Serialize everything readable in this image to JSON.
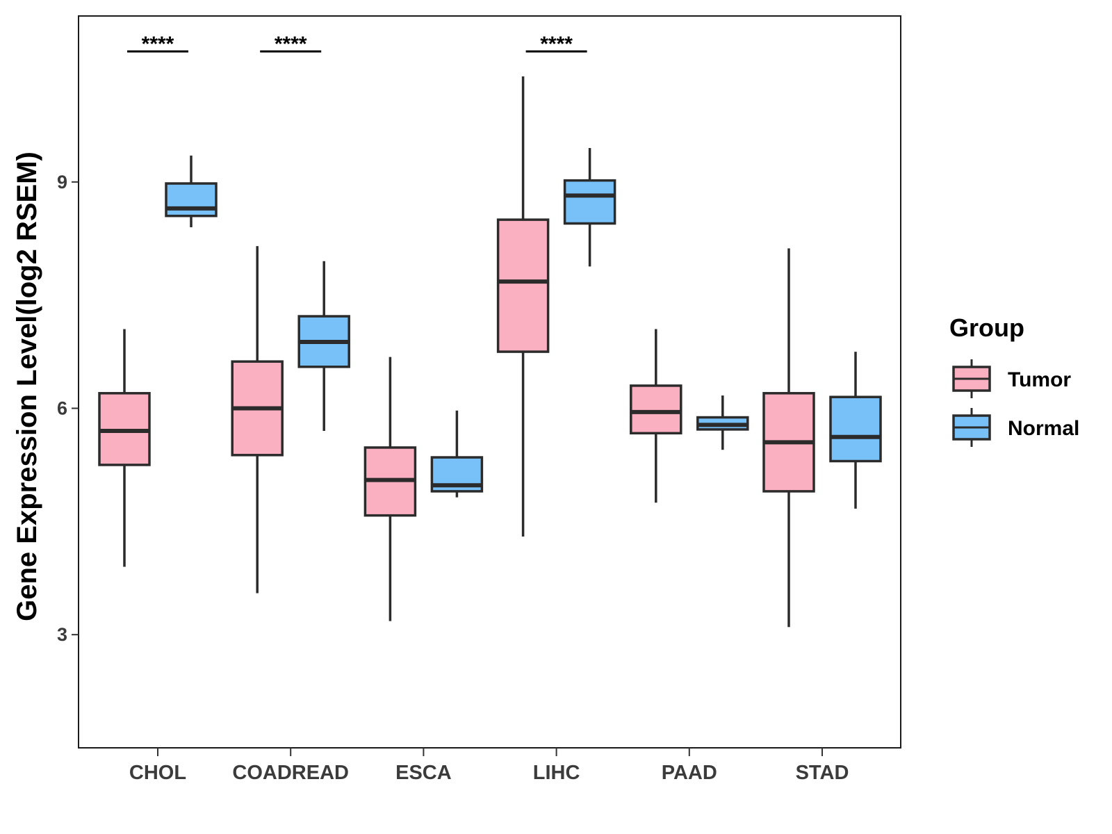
{
  "chart_data": {
    "type": "boxplot",
    "title": "",
    "xlabel": "",
    "ylabel": "Gene Expression Level(log2 RSEM)",
    "ylim": [
      1.5,
      11.2
    ],
    "yticks": [
      3,
      6,
      9
    ],
    "categories": [
      "CHOL",
      "COADREAD",
      "ESCA",
      "LIHC",
      "PAAD",
      "STAD"
    ],
    "legend": {
      "title": "Group",
      "position": "right",
      "entries": [
        {
          "name": "Tumor",
          "color": "#fbb0c2"
        },
        {
          "name": "Normal",
          "color": "#78c1f8"
        }
      ]
    },
    "series": [
      {
        "name": "Tumor",
        "color": "#fbb0c2",
        "boxes": [
          {
            "min": 3.9,
            "q1": 5.25,
            "median": 5.7,
            "q3": 6.2,
            "max": 7.05
          },
          {
            "min": 3.55,
            "q1": 5.38,
            "median": 6.0,
            "q3": 6.62,
            "max": 8.15
          },
          {
            "min": 3.18,
            "q1": 4.58,
            "median": 5.05,
            "q3": 5.48,
            "max": 6.68
          },
          {
            "min": 4.3,
            "q1": 6.75,
            "median": 7.68,
            "q3": 8.5,
            "max": 10.4
          },
          {
            "min": 4.75,
            "q1": 5.67,
            "median": 5.95,
            "q3": 6.3,
            "max": 7.05
          },
          {
            "min": 3.1,
            "q1": 4.9,
            "median": 5.55,
            "q3": 6.2,
            "max": 8.12
          }
        ]
      },
      {
        "name": "Normal",
        "color": "#78c1f8",
        "boxes": [
          {
            "min": 8.4,
            "q1": 8.55,
            "median": 8.65,
            "q3": 8.98,
            "max": 9.35
          },
          {
            "min": 5.7,
            "q1": 6.55,
            "median": 6.88,
            "q3": 7.22,
            "max": 7.95
          },
          {
            "min": 4.82,
            "q1": 4.9,
            "median": 4.98,
            "q3": 5.35,
            "max": 5.97
          },
          {
            "min": 7.88,
            "q1": 8.45,
            "median": 8.82,
            "q3": 9.02,
            "max": 9.45
          },
          {
            "min": 5.45,
            "q1": 5.72,
            "median": 5.78,
            "q3": 5.88,
            "max": 6.17
          },
          {
            "min": 4.67,
            "q1": 5.3,
            "median": 5.62,
            "q3": 6.15,
            "max": 6.75
          }
        ]
      }
    ],
    "annotations": [
      {
        "category": "CHOL",
        "text": "****"
      },
      {
        "category": "COADREAD",
        "text": "****"
      },
      {
        "category": "LIHC",
        "text": "****"
      }
    ]
  }
}
